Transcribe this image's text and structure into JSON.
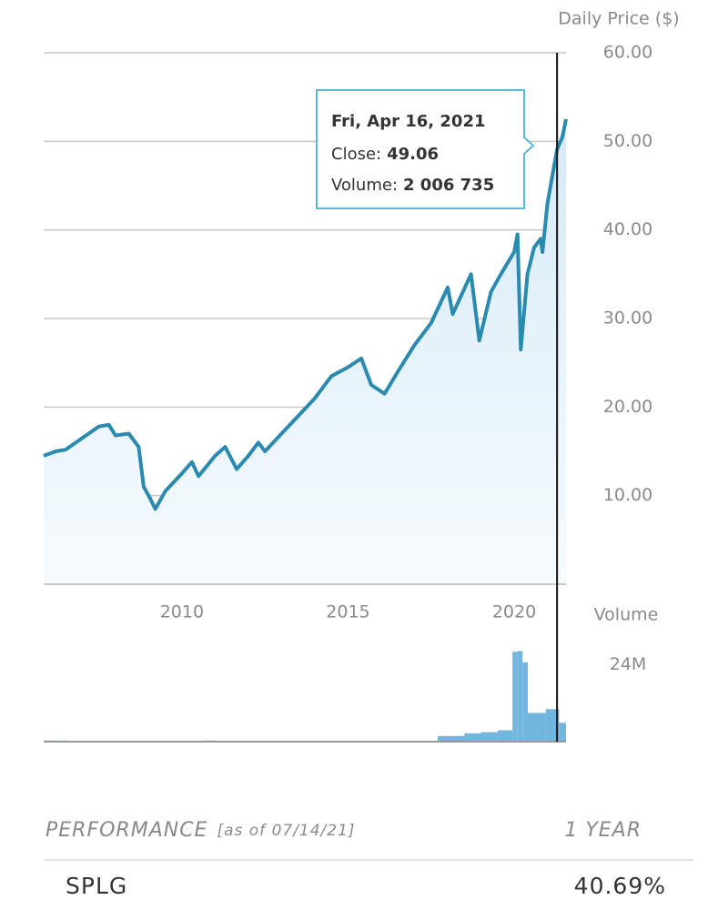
{
  "chart_data": [
    {
      "type": "line",
      "y_label": "Daily Price ($)",
      "x": [
        2005.84,
        2006.2,
        2006.5,
        2007.0,
        2007.5,
        2007.8,
        2008.0,
        2008.4,
        2008.7,
        2008.85,
        2009.0,
        2009.2,
        2009.5,
        2010.0,
        2010.3,
        2010.5,
        2011.0,
        2011.3,
        2011.65,
        2012.0,
        2012.3,
        2012.5,
        2013.0,
        2013.5,
        2014.0,
        2014.5,
        2015.0,
        2015.4,
        2015.7,
        2016.1,
        2016.5,
        2017.0,
        2017.5,
        2018.0,
        2018.15,
        2018.7,
        2018.95,
        2019.3,
        2019.6,
        2020.0,
        2020.1,
        2020.2,
        2020.4,
        2020.6,
        2020.8,
        2020.85,
        2021.0,
        2021.29,
        2021.45,
        2021.56
      ],
      "values": [
        14.5,
        15.0,
        15.2,
        16.5,
        17.8,
        18.0,
        16.8,
        17.0,
        15.5,
        11.0,
        10.0,
        8.5,
        10.5,
        12.5,
        13.8,
        12.2,
        14.5,
        15.5,
        13.0,
        14.5,
        16.0,
        15.0,
        17.0,
        19.0,
        21.0,
        23.5,
        24.5,
        25.5,
        22.5,
        21.5,
        24.0,
        27.0,
        29.5,
        33.5,
        30.5,
        35.0,
        27.5,
        33.0,
        35.0,
        37.5,
        39.5,
        26.5,
        35.0,
        38.0,
        39.0,
        37.5,
        43.0,
        49.06,
        50.5,
        52.5
      ],
      "color": "#2b8ab0",
      "xlim": [
        2005.84,
        2021.56
      ],
      "xticks": [
        2010,
        2015,
        2020
      ],
      "ylim": [
        0,
        60
      ],
      "yticks": [
        {
          "value": 10,
          "label": "10.00"
        },
        {
          "value": 20,
          "label": "20.00"
        },
        {
          "value": 30,
          "label": "30.00"
        },
        {
          "value": 40,
          "label": "40.00"
        },
        {
          "value": 50,
          "label": "50.00"
        },
        {
          "value": 60,
          "label": "60.00"
        }
      ],
      "grid": true,
      "cursor_x": 2021.29,
      "tooltip": {
        "date": "Fri, Apr 16, 2021",
        "close_label": "Close:",
        "close": "49.06",
        "volume_label": "Volume:",
        "volume": "2 006 735"
      }
    },
    {
      "type": "bar",
      "y_label": "Volume",
      "x": [
        2005.84,
        2006.6,
        2010.6,
        2011.0,
        2017.7,
        2018.5,
        2019.0,
        2019.5,
        2019.95,
        2020.1,
        2020.25,
        2020.41,
        2020.95,
        2021.35
      ],
      "values": [
        300000,
        50000,
        300000,
        50000,
        1500000,
        2200000,
        2500000,
        3000000,
        23800000,
        24000000,
        21000000,
        7600000,
        8600000,
        5000000
      ],
      "color": "#72b5de",
      "xlim": [
        2005.84,
        2021.56
      ],
      "ylim": [
        0,
        27000000
      ],
      "yticks": [
        {
          "value": 24000000,
          "label": "24M"
        }
      ],
      "grid": false
    }
  ],
  "performance": {
    "title": "PERFORMANCE",
    "as_of": "[as of 07/14/21]",
    "period": "1 YEAR",
    "rows": [
      [
        "SPLG",
        "40.69%"
      ]
    ]
  }
}
